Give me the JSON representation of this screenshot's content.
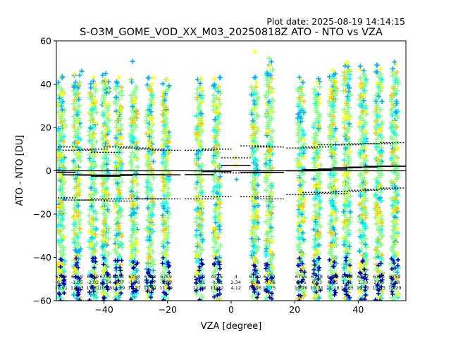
{
  "plot_date": "Plot date: 2025-08-19 14:14:15",
  "chart_data": {
    "type": "scatter",
    "title": "S-O3M_GOME_VOD_XX_M03_20250818Z ATO - NTO vs VZA",
    "xlabel": "VZA [degree]",
    "ylabel": "ATO - NTO [DU]",
    "xlim": [
      -55,
      55
    ],
    "ylim": [
      -60,
      60
    ],
    "x_ticks": [
      -40,
      -20,
      0,
      20,
      40
    ],
    "y_ticks": [
      -60,
      -40,
      -20,
      0,
      20,
      40,
      60
    ],
    "x_tick_labels": [
      "−40",
      "−20",
      "0",
      "20",
      "40"
    ],
    "y_tick_labels": [
      "−60",
      "−40",
      "−20",
      "0",
      "20",
      "40",
      "60"
    ],
    "bins": [
      {
        "x": -53.5,
        "n": "6759",
        "mean": "-0.72",
        "std": "11.91",
        "median": -0.7,
        "p_low": -12.5,
        "p_high": 11.0,
        "top": 41,
        "bottom": -60
      },
      {
        "x": -48.5,
        "n": "6759",
        "mean": "-1.85",
        "std": "12.23",
        "median": -1.9,
        "p_low": -13.5,
        "p_high": 9.5,
        "top": 42,
        "bottom": -60
      },
      {
        "x": -43.5,
        "n": "6759",
        "mean": "-2.02",
        "std": "11.81",
        "median": -2.0,
        "p_low": -13.5,
        "p_high": 10.0,
        "top": 40,
        "bottom": -60
      },
      {
        "x": -39.5,
        "n": "6759",
        "mean": "-2.54",
        "std": "10.96",
        "median": -2.5,
        "p_low": -13.0,
        "p_high": 8.5,
        "top": 42,
        "bottom": -60
      },
      {
        "x": -35.5,
        "n": "6744",
        "mean": "-2.07",
        "std": "13.39",
        "median": -2.1,
        "p_low": -14.0,
        "p_high": 11.0,
        "top": 40,
        "bottom": -60
      },
      {
        "x": -30.5,
        "n": "6758",
        "mean": "-1.78",
        "std": "11.77",
        "median": -1.8,
        "p_low": -13.0,
        "p_high": 10.5,
        "top": 40,
        "bottom": -60
      },
      {
        "x": -25.5,
        "n": "6748",
        "mean": "-1.77",
        "std": "11.51",
        "median": -1.8,
        "p_low": -13.0,
        "p_high": 10.0,
        "top": 40,
        "bottom": -60
      },
      {
        "x": -20.5,
        "n": "6759",
        "mean": "-1.89",
        "std": "11.40",
        "median": -1.9,
        "p_low": -13.0,
        "p_high": 9.5,
        "top": 40,
        "bottom": -60
      },
      {
        "x": -10.0,
        "n": "6759",
        "mean": "-1.81",
        "std": "11.28",
        "median": -1.8,
        "p_low": -13.0,
        "p_high": 9.5,
        "top": 40,
        "bottom": -60
      },
      {
        "x": -4.5,
        "n": "4315",
        "mean": "-0.41",
        "std": "11.20",
        "median": -0.4,
        "p_low": -12.0,
        "p_high": 10.0,
        "top": 40,
        "bottom": -60
      },
      {
        "x": 1.5,
        "n": "4",
        "mean": "2.34",
        "std": "4.12",
        "median": 2.4,
        "p_low": -1.0,
        "p_high": 6.0,
        "top": 6,
        "bottom": -4
      },
      {
        "x": 7.5,
        "n": "6750",
        "mean": "-0.71",
        "std": "11.98",
        "median": -0.7,
        "p_low": -12.0,
        "p_high": 11.5,
        "top": 40,
        "bottom": -60
      },
      {
        "x": 12.0,
        "n": "6759",
        "mean": "-0.76",
        "std": "12.75",
        "median": -0.8,
        "p_low": -13.0,
        "p_high": 11.0,
        "top": 48,
        "bottom": -60
      },
      {
        "x": 22.0,
        "n": "6755",
        "mean": "0.06",
        "std": "10.70",
        "median": 0.0,
        "p_low": -11.0,
        "p_high": 10.5,
        "top": 40,
        "bottom": -60
      },
      {
        "x": 27.0,
        "n": "6758",
        "mean": "0.53",
        "std": "10.71",
        "median": 0.5,
        "p_low": -10.0,
        "p_high": 11.0,
        "top": 40,
        "bottom": -60
      },
      {
        "x": 32.0,
        "n": "6751",
        "mean": "0.75",
        "std": "11.18",
        "median": 0.8,
        "p_low": -10.5,
        "p_high": 12.0,
        "top": 44,
        "bottom": -60
      },
      {
        "x": 36.5,
        "n": "6758",
        "mean": "1.41",
        "std": "10.65",
        "median": 1.4,
        "p_low": -9.5,
        "p_high": 12.0,
        "top": 48,
        "bottom": -60
      },
      {
        "x": 41.5,
        "n": "6757",
        "mean": "1.70",
        "std": "10.52",
        "median": 1.7,
        "p_low": -9.0,
        "p_high": 12.5,
        "top": 46,
        "bottom": -60
      },
      {
        "x": 46.5,
        "n": "6759",
        "mean": "2.00",
        "std": "10.53",
        "median": 2.0,
        "p_low": -8.5,
        "p_high": 12.5,
        "top": 46,
        "bottom": -60
      },
      {
        "x": 51.5,
        "n": "6759",
        "mean": "2.08",
        "std": "10.29",
        "median": 2.1,
        "p_low": -8.0,
        "p_high": 13.0,
        "top": 47,
        "bottom": -60
      }
    ]
  }
}
